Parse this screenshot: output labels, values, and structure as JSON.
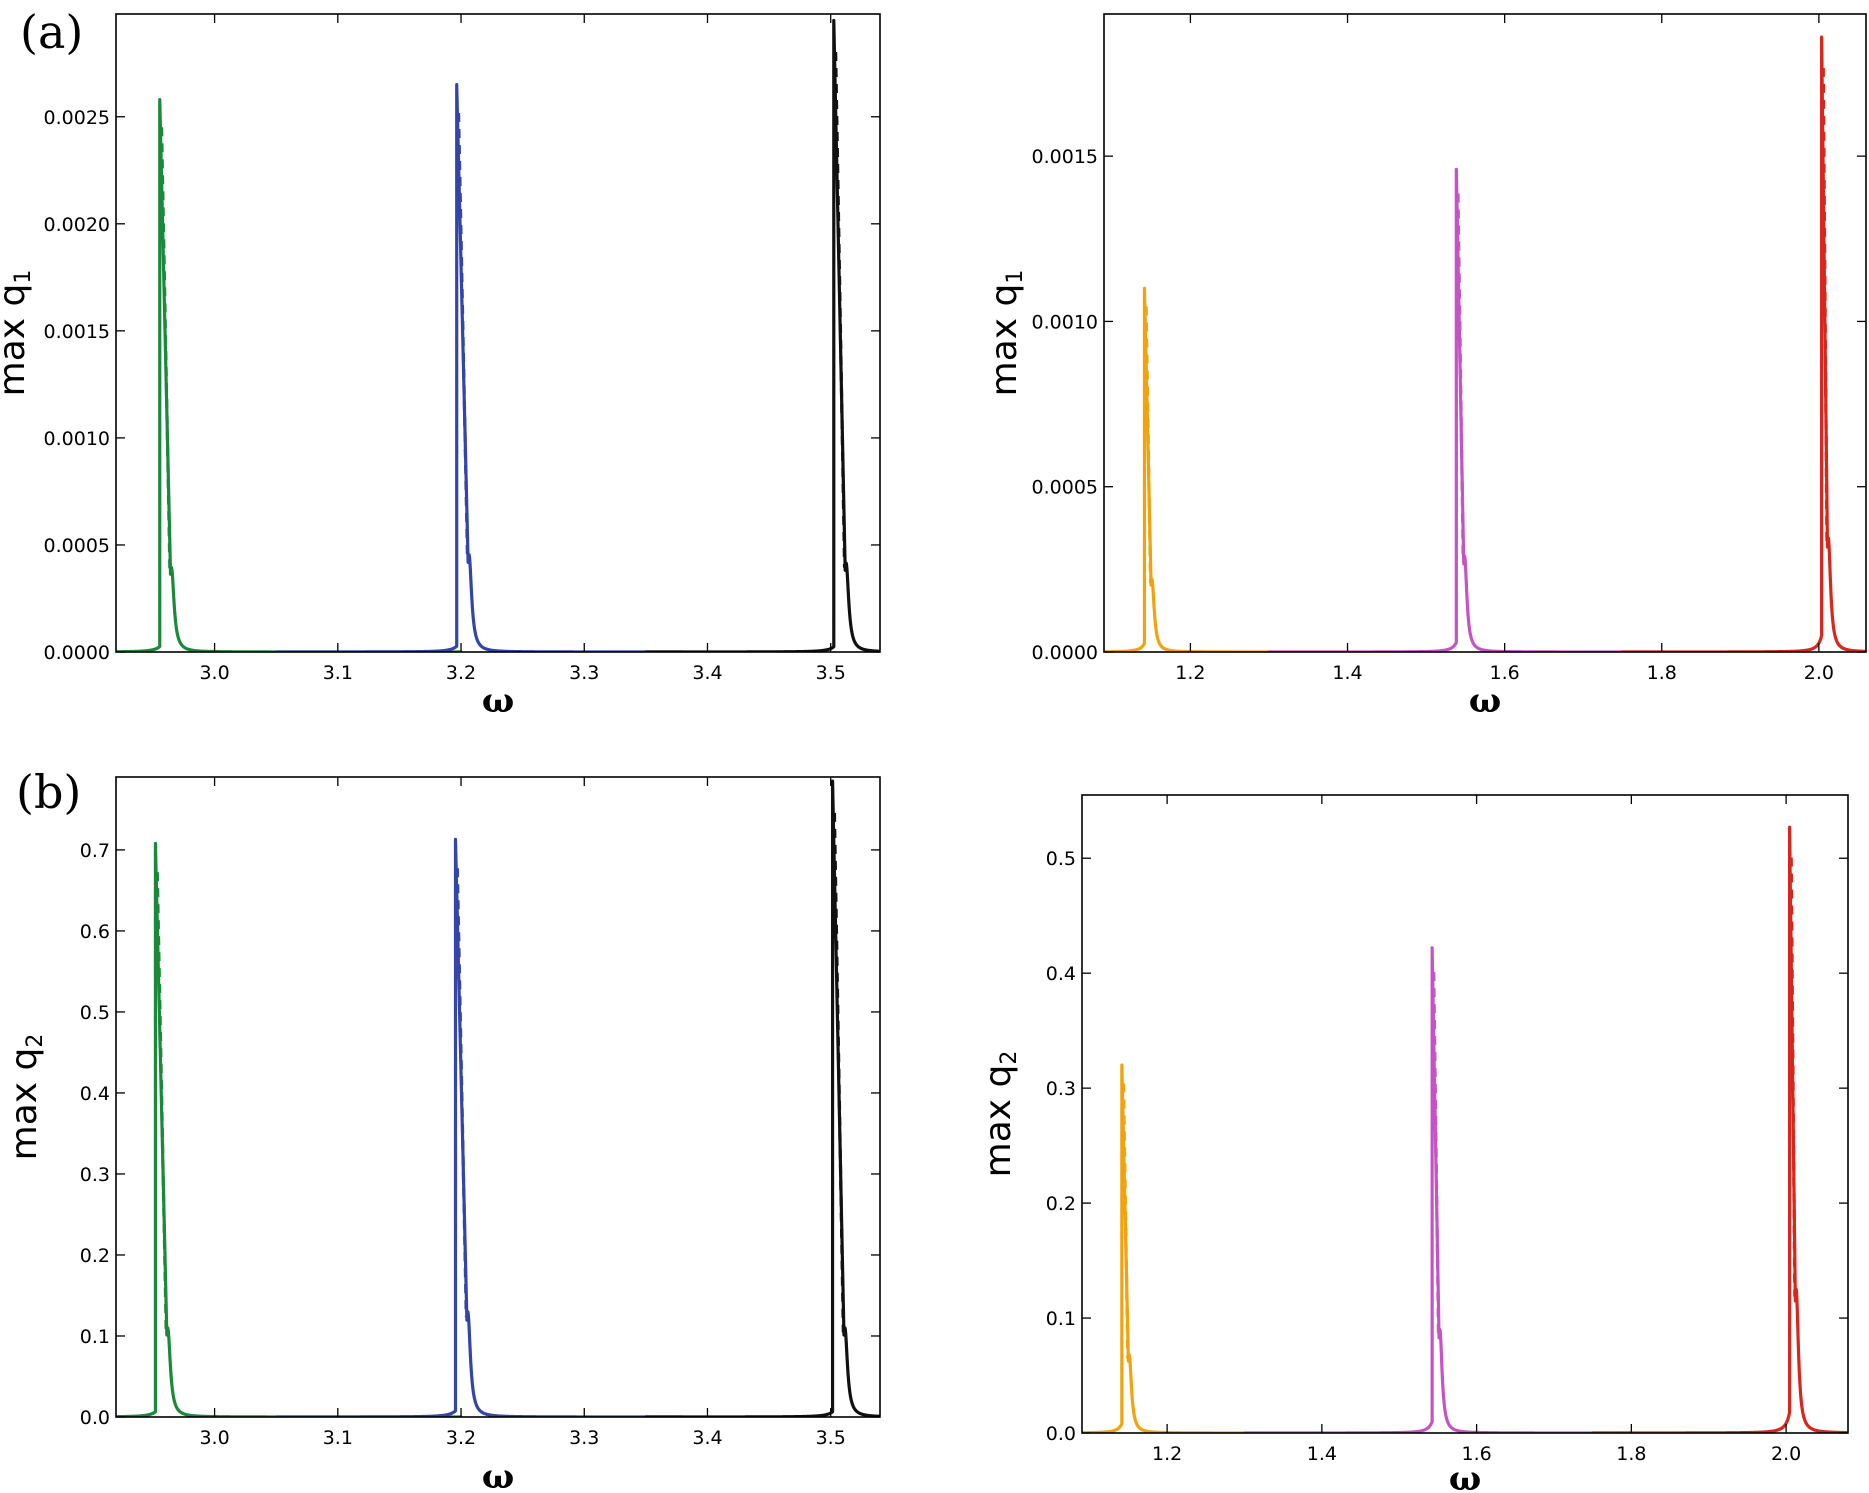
{
  "colors": {
    "green": "#1a8a3a",
    "blue": "#3345a8",
    "black": "#111111",
    "orange": "#f2a20a",
    "magenta": "#c653c6",
    "red": "#d9261c"
  },
  "chart_data": [
    {
      "id": "a-left",
      "type": "line",
      "panel_letter": "(a)",
      "xlabel": "ω",
      "ylabel_main": "max q",
      "ylabel_sub": "1",
      "xlim": [
        2.92,
        3.54
      ],
      "ylim": [
        0,
        0.00298
      ],
      "xticks": [
        3.0,
        3.1,
        3.2,
        3.3,
        3.4,
        3.5
      ],
      "xtick_labels": [
        "3.0",
        "3.1",
        "3.2",
        "3.3",
        "3.4",
        "3.5"
      ],
      "yticks": [
        0,
        0.0005,
        0.001,
        0.0015,
        0.002,
        0.0025
      ],
      "ytick_labels": [
        "0.0000",
        "0.0005",
        "0.0010",
        "0.0015",
        "0.0020",
        "0.0025"
      ],
      "series": [
        {
          "color": "#1a8a3a",
          "peak_x": 2.9555,
          "peak_y": 0.00258,
          "lower_x": 2.965,
          "lower_y": 0.000395,
          "width": 0.0025,
          "range": [
            2.92,
            3.2
          ]
        },
        {
          "color": "#3345a8",
          "peak_x": 3.1965,
          "peak_y": 0.00265,
          "lower_x": 3.2065,
          "lower_y": 0.000455,
          "width": 0.0025,
          "range": [
            3.05,
            3.38
          ]
        },
        {
          "color": "#111111",
          "peak_x": 3.5025,
          "peak_y": 0.00295,
          "lower_x": 3.5125,
          "lower_y": 0.000415,
          "width": 0.0025,
          "range": [
            3.35,
            3.54
          ]
        }
      ]
    },
    {
      "id": "a-right",
      "type": "line",
      "panel_letter": "",
      "xlabel": "ω",
      "ylabel_main": "max q",
      "ylabel_sub": "1",
      "xlim": [
        1.09,
        2.06
      ],
      "ylim": [
        0,
        0.00193
      ],
      "xticks": [
        1.2,
        1.4,
        1.6,
        1.8,
        2.0
      ],
      "xtick_labels": [
        "1.2",
        "1.4",
        "1.6",
        "1.8",
        "2.0"
      ],
      "yticks": [
        0,
        0.0005,
        0.001,
        0.0015
      ],
      "ytick_labels": [
        "0.0000",
        "0.0005",
        "0.0010",
        "0.0015"
      ],
      "series": [
        {
          "color": "#f2a20a",
          "peak_x": 1.1415,
          "peak_y": 0.0011,
          "lower_x": 1.151,
          "lower_y": 0.00022,
          "width": 0.0035,
          "range": [
            1.09,
            1.4
          ]
        },
        {
          "color": "#c653c6",
          "peak_x": 1.5385,
          "peak_y": 0.00146,
          "lower_x": 1.549,
          "lower_y": 0.00029,
          "width": 0.0035,
          "range": [
            1.3,
            1.8
          ]
        },
        {
          "color": "#d9261c",
          "peak_x": 2.0035,
          "peak_y": 0.00186,
          "lower_x": 2.012,
          "lower_y": 0.000345,
          "width": 0.0035,
          "range": [
            1.75,
            2.06
          ]
        }
      ]
    },
    {
      "id": "b-left",
      "type": "line",
      "panel_letter": "(b)",
      "xlabel": "ω",
      "ylabel_main": "max q",
      "ylabel_sub": "2",
      "xlim": [
        2.92,
        3.54
      ],
      "ylim": [
        0,
        0.79
      ],
      "xticks": [
        3.0,
        3.1,
        3.2,
        3.3,
        3.4,
        3.5
      ],
      "xtick_labels": [
        "3.0",
        "3.1",
        "3.2",
        "3.3",
        "3.4",
        "3.5"
      ],
      "yticks": [
        0,
        0.1,
        0.2,
        0.3,
        0.4,
        0.5,
        0.6,
        0.7
      ],
      "ytick_labels": [
        "0.0",
        "0.1",
        "0.2",
        "0.3",
        "0.4",
        "0.5",
        "0.6",
        "0.7"
      ],
      "series": [
        {
          "color": "#1a8a3a",
          "peak_x": 2.952,
          "peak_y": 0.708,
          "lower_x": 2.962,
          "lower_y": 0.11,
          "width": 0.0025,
          "range": [
            2.92,
            3.2
          ]
        },
        {
          "color": "#3345a8",
          "peak_x": 3.1955,
          "peak_y": 0.713,
          "lower_x": 3.2055,
          "lower_y": 0.13,
          "width": 0.0025,
          "range": [
            3.05,
            3.38
          ]
        },
        {
          "color": "#111111",
          "peak_x": 3.5015,
          "peak_y": 0.785,
          "lower_x": 3.5115,
          "lower_y": 0.11,
          "width": 0.0025,
          "range": [
            3.35,
            3.54
          ]
        }
      ]
    },
    {
      "id": "b-right",
      "type": "line",
      "panel_letter": "",
      "xlabel": "ω",
      "ylabel_main": "max q",
      "ylabel_sub": "2",
      "xlim": [
        1.09,
        2.08
      ],
      "ylim": [
        0,
        0.555
      ],
      "xticks": [
        1.2,
        1.4,
        1.6,
        1.8,
        2.0
      ],
      "xtick_labels": [
        "1.2",
        "1.4",
        "1.6",
        "1.8",
        "2.0"
      ],
      "yticks": [
        0,
        0.1,
        0.2,
        0.3,
        0.4,
        0.5
      ],
      "ytick_labels": [
        "0.0",
        "0.1",
        "0.2",
        "0.3",
        "0.4",
        "0.5"
      ],
      "series": [
        {
          "color": "#f2a20a",
          "peak_x": 1.1415,
          "peak_y": 0.32,
          "lower_x": 1.151,
          "lower_y": 0.068,
          "width": 0.0035,
          "range": [
            1.09,
            1.4
          ]
        },
        {
          "color": "#c653c6",
          "peak_x": 1.5425,
          "peak_y": 0.422,
          "lower_x": 1.5525,
          "lower_y": 0.09,
          "width": 0.0035,
          "range": [
            1.3,
            1.8
          ]
        },
        {
          "color": "#d9261c",
          "peak_x": 2.0045,
          "peak_y": 0.527,
          "lower_x": 2.013,
          "lower_y": 0.125,
          "width": 0.0035,
          "range": [
            1.75,
            2.08
          ]
        }
      ]
    }
  ]
}
